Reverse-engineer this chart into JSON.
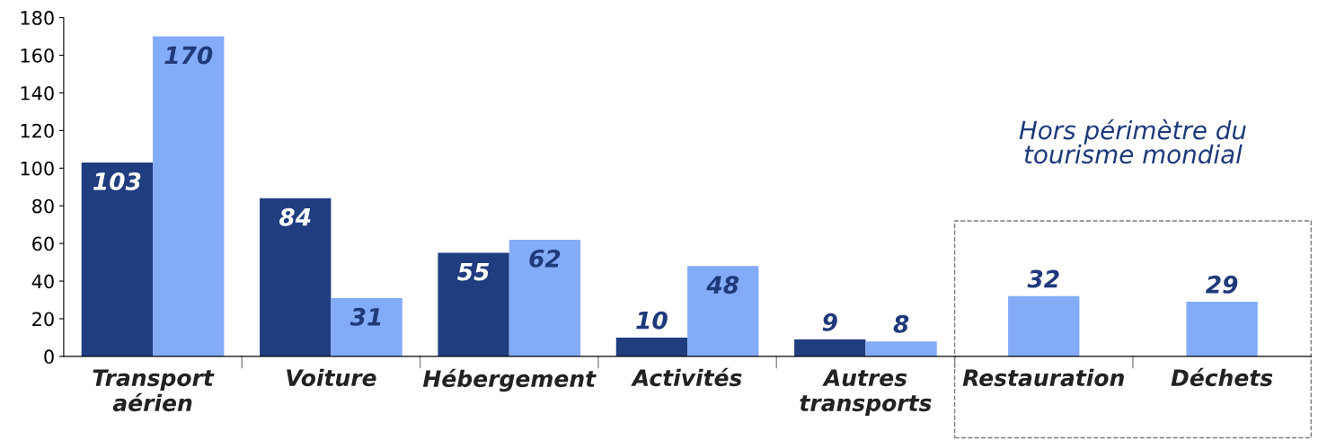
{
  "chart_data": {
    "type": "bar",
    "categories": [
      "Transport\naérien",
      "Voiture",
      "Hébergement",
      "Activités",
      "Autres\ntransports",
      "Restauration",
      "Déchets"
    ],
    "series": [
      {
        "color": "#1f3d7f",
        "values": [
          103,
          84,
          55,
          10,
          9,
          null,
          null
        ]
      },
      {
        "color": "#84abf8",
        "values": [
          170,
          31,
          62,
          48,
          8,
          32,
          29
        ]
      }
    ],
    "ylim": [
      0,
      180
    ],
    "yticks": [
      0,
      20,
      40,
      60,
      80,
      100,
      120,
      140,
      160,
      180
    ],
    "grid": false,
    "data_labels": true,
    "annotations": [
      "Hors périmètre du\ntourisme mondial"
    ]
  }
}
